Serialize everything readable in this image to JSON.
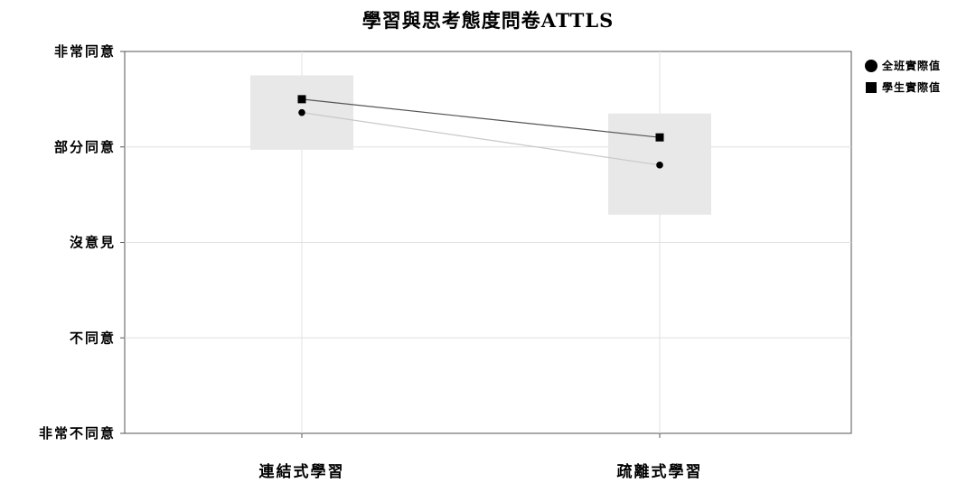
{
  "chart_data": {
    "type": "line",
    "title": "學習與思考態度問卷ATTLS",
    "xlabel": "",
    "ylabel": "",
    "categories": [
      "連結式學習",
      "疏離式學習"
    ],
    "y_tick_labels": [
      "非常不同意",
      "不同意",
      "沒意見",
      "部分同意",
      "非常同意"
    ],
    "ylim": [
      1,
      5
    ],
    "grid": true,
    "legend_position": "right",
    "series": [
      {
        "name": "全班實際值",
        "marker": "circle",
        "values": [
          4.36,
          3.81
        ],
        "color": "#c8c8c8"
      },
      {
        "name": "學生實際值",
        "marker": "square",
        "values": [
          4.5,
          4.1
        ],
        "color": "#555555"
      }
    ],
    "ranges": [
      {
        "category": "連結式學習",
        "low": 3.97,
        "high": 4.75
      },
      {
        "category": "疏離式學習",
        "low": 3.29,
        "high": 4.35
      }
    ],
    "colors": {
      "range_fill": "#e8e8e8",
      "marker": "#000000",
      "grid": "#e0e0e0",
      "axis": "#555555"
    }
  }
}
